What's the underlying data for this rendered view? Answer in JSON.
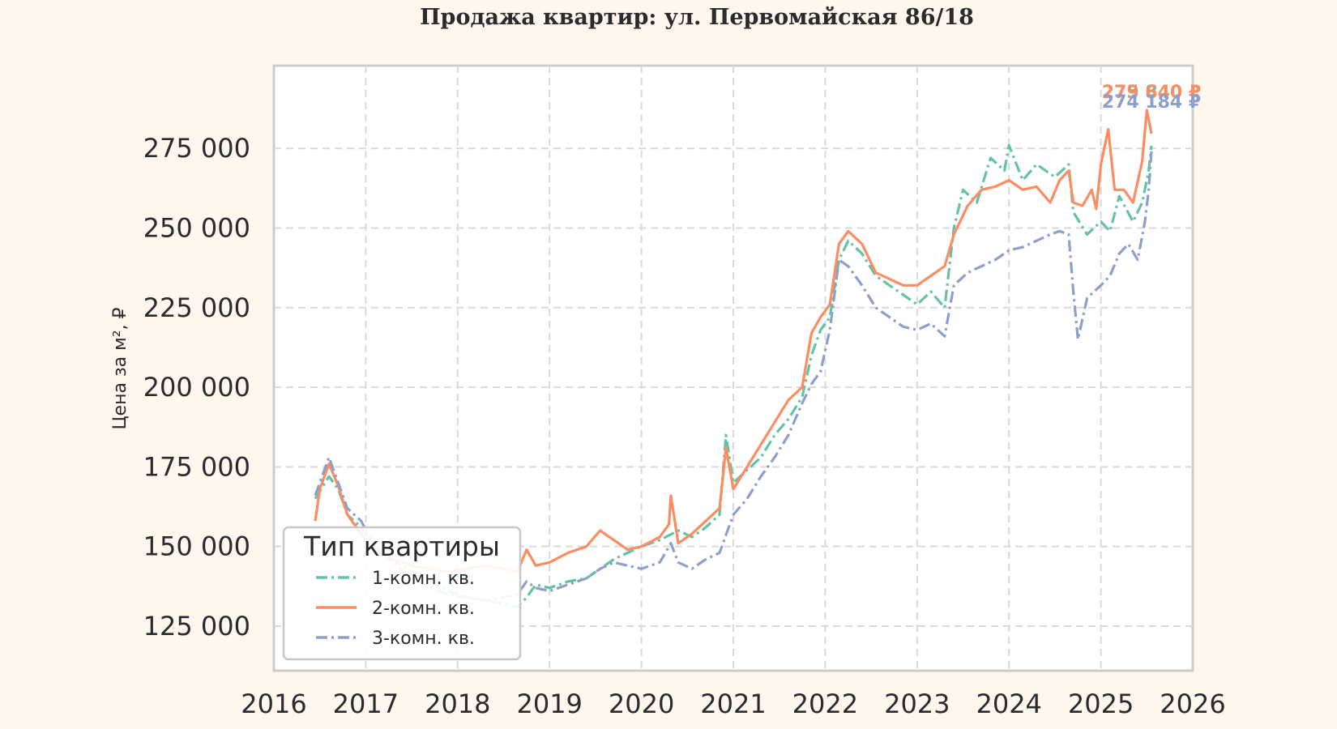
{
  "chart_data": {
    "type": "line",
    "title": "Продажа квартир: ул. Первомайская 86/18",
    "ylabel": "Цена за м², ₽",
    "xlim": [
      2016,
      2026
    ],
    "ylim": [
      111000,
      301000
    ],
    "x_ticks": [
      "2016",
      "2017",
      "2018",
      "2019",
      "2020",
      "2021",
      "2022",
      "2023",
      "2024",
      "2025",
      "2026"
    ],
    "y_ticks": [
      {
        "value": 125000,
        "label": "125 000"
      },
      {
        "value": 150000,
        "label": "150 000"
      },
      {
        "value": 175000,
        "label": "175 000"
      },
      {
        "value": 200000,
        "label": "200 000"
      },
      {
        "value": 225000,
        "label": "225 000"
      },
      {
        "value": 250000,
        "label": "250 000"
      },
      {
        "value": 275000,
        "label": "275 000"
      }
    ],
    "grid": true,
    "legend": {
      "title": "Тип квартиры",
      "position": "lower-left"
    },
    "series": [
      {
        "name": "1-комн. кв.",
        "color": "#66c2a5",
        "dash": "dashdot",
        "end_label": "275 840 ₽",
        "points": [
          [
            2016.45,
            165000
          ],
          [
            2016.6,
            172000
          ],
          [
            2016.7,
            168000
          ],
          [
            2016.8,
            160000
          ],
          [
            2016.95,
            156000
          ],
          [
            2017.1,
            150000
          ],
          [
            2017.3,
            146000
          ],
          [
            2017.5,
            142000
          ],
          [
            2017.7,
            139000
          ],
          [
            2017.9,
            136000
          ],
          [
            2018.1,
            134000
          ],
          [
            2018.3,
            133000
          ],
          [
            2018.5,
            132000
          ],
          [
            2018.65,
            131000
          ],
          [
            2018.75,
            134000
          ],
          [
            2018.85,
            138000
          ],
          [
            2019.0,
            137000
          ],
          [
            2019.2,
            139000
          ],
          [
            2019.4,
            140000
          ],
          [
            2019.55,
            143000
          ],
          [
            2019.7,
            146000
          ],
          [
            2019.85,
            148000
          ],
          [
            2020.0,
            150000
          ],
          [
            2020.2,
            152000
          ],
          [
            2020.4,
            155000
          ],
          [
            2020.55,
            153000
          ],
          [
            2020.7,
            156000
          ],
          [
            2020.85,
            160000
          ],
          [
            2020.92,
            185000
          ],
          [
            2021.0,
            170000
          ],
          [
            2021.15,
            174000
          ],
          [
            2021.3,
            178000
          ],
          [
            2021.45,
            185000
          ],
          [
            2021.6,
            190000
          ],
          [
            2021.75,
            197000
          ],
          [
            2021.85,
            210000
          ],
          [
            2021.95,
            218000
          ],
          [
            2022.05,
            222000
          ],
          [
            2022.15,
            240000
          ],
          [
            2022.25,
            246000
          ],
          [
            2022.4,
            242000
          ],
          [
            2022.55,
            235000
          ],
          [
            2022.7,
            232000
          ],
          [
            2022.85,
            229000
          ],
          [
            2023.0,
            226000
          ],
          [
            2023.15,
            230000
          ],
          [
            2023.3,
            225000
          ],
          [
            2023.4,
            250000
          ],
          [
            2023.5,
            262000
          ],
          [
            2023.65,
            258000
          ],
          [
            2023.8,
            272000
          ],
          [
            2023.95,
            268000
          ],
          [
            2024.0,
            276000
          ],
          [
            2024.15,
            265000
          ],
          [
            2024.3,
            270000
          ],
          [
            2024.5,
            266000
          ],
          [
            2024.65,
            270000
          ],
          [
            2024.7,
            255000
          ],
          [
            2024.85,
            248000
          ],
          [
            2025.0,
            252000
          ],
          [
            2025.1,
            249000
          ],
          [
            2025.2,
            260000
          ],
          [
            2025.35,
            252000
          ],
          [
            2025.45,
            258000
          ],
          [
            2025.52,
            268000
          ],
          [
            2025.55,
            275840
          ]
        ]
      },
      {
        "name": "2-комн. кв.",
        "color": "#fc8d62",
        "dash": "solid",
        "end_label": "279 640 ₽",
        "points": [
          [
            2016.45,
            158000
          ],
          [
            2016.5,
            168000
          ],
          [
            2016.6,
            176000
          ],
          [
            2016.7,
            169000
          ],
          [
            2016.8,
            160000
          ],
          [
            2016.95,
            154000
          ],
          [
            2017.1,
            149000
          ],
          [
            2017.3,
            146000
          ],
          [
            2017.5,
            144000
          ],
          [
            2017.7,
            143000
          ],
          [
            2017.9,
            142000
          ],
          [
            2018.1,
            143000
          ],
          [
            2018.3,
            144000
          ],
          [
            2018.5,
            143000
          ],
          [
            2018.65,
            142000
          ],
          [
            2018.75,
            149000
          ],
          [
            2018.85,
            144000
          ],
          [
            2019.0,
            145000
          ],
          [
            2019.2,
            148000
          ],
          [
            2019.4,
            150000
          ],
          [
            2019.55,
            155000
          ],
          [
            2019.7,
            152000
          ],
          [
            2019.85,
            149000
          ],
          [
            2020.0,
            150000
          ],
          [
            2020.2,
            153000
          ],
          [
            2020.3,
            157000
          ],
          [
            2020.32,
            166000
          ],
          [
            2020.4,
            151000
          ],
          [
            2020.55,
            154000
          ],
          [
            2020.7,
            158000
          ],
          [
            2020.85,
            162000
          ],
          [
            2020.92,
            181000
          ],
          [
            2021.0,
            168000
          ],
          [
            2021.15,
            175000
          ],
          [
            2021.3,
            182000
          ],
          [
            2021.45,
            189000
          ],
          [
            2021.6,
            196000
          ],
          [
            2021.75,
            200000
          ],
          [
            2021.85,
            217000
          ],
          [
            2021.95,
            222000
          ],
          [
            2022.05,
            226000
          ],
          [
            2022.15,
            245000
          ],
          [
            2022.25,
            249000
          ],
          [
            2022.4,
            245000
          ],
          [
            2022.55,
            236000
          ],
          [
            2022.7,
            234000
          ],
          [
            2022.85,
            232000
          ],
          [
            2023.0,
            232000
          ],
          [
            2023.15,
            235000
          ],
          [
            2023.3,
            238000
          ],
          [
            2023.4,
            248000
          ],
          [
            2023.55,
            257000
          ],
          [
            2023.7,
            262000
          ],
          [
            2023.85,
            263000
          ],
          [
            2024.0,
            265000
          ],
          [
            2024.15,
            262000
          ],
          [
            2024.3,
            263000
          ],
          [
            2024.45,
            258000
          ],
          [
            2024.55,
            265000
          ],
          [
            2024.65,
            268000
          ],
          [
            2024.7,
            258000
          ],
          [
            2024.8,
            257000
          ],
          [
            2024.9,
            262000
          ],
          [
            2024.95,
            256000
          ],
          [
            2025.0,
            270000
          ],
          [
            2025.08,
            281000
          ],
          [
            2025.15,
            262000
          ],
          [
            2025.25,
            262000
          ],
          [
            2025.35,
            258000
          ],
          [
            2025.45,
            271000
          ],
          [
            2025.5,
            287000
          ],
          [
            2025.55,
            279640
          ]
        ]
      },
      {
        "name": "3-комн. кв.",
        "color": "#8da0cb",
        "dash": "dashdot",
        "end_label": "274 184 ₽",
        "points": [
          [
            2016.45,
            166000
          ],
          [
            2016.6,
            178000
          ],
          [
            2016.7,
            170000
          ],
          [
            2016.8,
            162000
          ],
          [
            2016.95,
            158000
          ],
          [
            2017.1,
            150000
          ],
          [
            2017.3,
            145000
          ],
          [
            2017.5,
            140000
          ],
          [
            2017.7,
            137000
          ],
          [
            2017.9,
            135000
          ],
          [
            2018.1,
            134000
          ],
          [
            2018.3,
            133000
          ],
          [
            2018.5,
            134000
          ],
          [
            2018.65,
            135000
          ],
          [
            2018.75,
            139000
          ],
          [
            2018.85,
            137000
          ],
          [
            2019.0,
            136000
          ],
          [
            2019.2,
            138000
          ],
          [
            2019.4,
            140000
          ],
          [
            2019.55,
            143000
          ],
          [
            2019.7,
            145000
          ],
          [
            2019.85,
            144000
          ],
          [
            2020.0,
            143000
          ],
          [
            2020.2,
            145000
          ],
          [
            2020.32,
            151000
          ],
          [
            2020.4,
            145000
          ],
          [
            2020.55,
            143000
          ],
          [
            2020.7,
            146000
          ],
          [
            2020.85,
            148000
          ],
          [
            2021.0,
            160000
          ],
          [
            2021.15,
            165000
          ],
          [
            2021.3,
            172000
          ],
          [
            2021.45,
            178000
          ],
          [
            2021.6,
            185000
          ],
          [
            2021.75,
            195000
          ],
          [
            2021.85,
            201000
          ],
          [
            2021.95,
            205000
          ],
          [
            2022.05,
            218000
          ],
          [
            2022.15,
            240000
          ],
          [
            2022.25,
            238000
          ],
          [
            2022.4,
            232000
          ],
          [
            2022.55,
            225000
          ],
          [
            2022.7,
            222000
          ],
          [
            2022.85,
            219000
          ],
          [
            2023.0,
            218000
          ],
          [
            2023.15,
            220000
          ],
          [
            2023.3,
            216000
          ],
          [
            2023.4,
            232000
          ],
          [
            2023.55,
            236000
          ],
          [
            2023.7,
            238000
          ],
          [
            2023.85,
            240000
          ],
          [
            2024.0,
            243000
          ],
          [
            2024.15,
            244000
          ],
          [
            2024.3,
            246000
          ],
          [
            2024.45,
            248000
          ],
          [
            2024.55,
            249000
          ],
          [
            2024.65,
            248000
          ],
          [
            2024.7,
            230000
          ],
          [
            2024.75,
            215000
          ],
          [
            2024.85,
            228000
          ],
          [
            2025.0,
            232000
          ],
          [
            2025.1,
            235000
          ],
          [
            2025.2,
            242000
          ],
          [
            2025.3,
            245000
          ],
          [
            2025.4,
            240000
          ],
          [
            2025.48,
            252000
          ],
          [
            2025.52,
            262000
          ],
          [
            2025.55,
            274184
          ]
        ]
      }
    ]
  }
}
